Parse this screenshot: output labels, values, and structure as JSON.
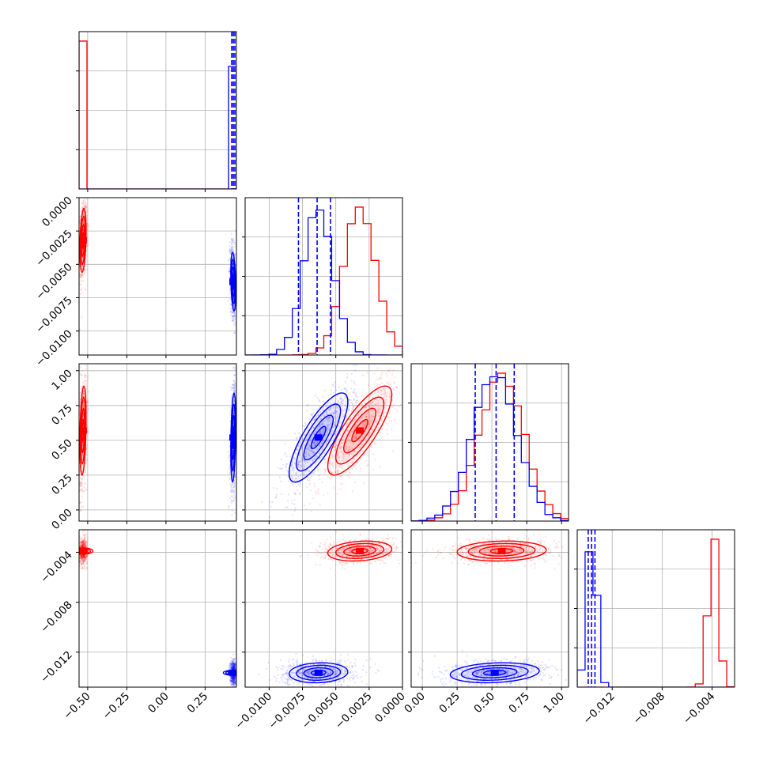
{
  "chart_data": {
    "type": "corner",
    "grid": true,
    "series": [
      {
        "color": "#ff0000",
        "p0": {
          "mean": -0.53,
          "sd": 0.01,
          "quantiles": []
        },
        "p1": {
          "mean": -0.0032,
          "sd": 0.0012,
          "quantiles": []
        },
        "p2": {
          "mean": 0.57,
          "sd": 0.16,
          "quantiles": []
        },
        "p3": {
          "mean": -0.0039,
          "sd": 0.0004,
          "quantiles": []
        },
        "corr": {
          "p1_p2": 0.8,
          "p0_p1": 0.3,
          "p0_p2": 0.3,
          "p1_p3": 0.2,
          "p2_p3": 0.1,
          "p0_p3": 0.0
        }
      },
      {
        "color": "#0000ff",
        "p0": {
          "mean": 0.43,
          "sd": 0.008,
          "quantiles": [
            0.42,
            0.43,
            0.44
          ]
        },
        "p1": {
          "mean": -0.0063,
          "sd": 0.0011,
          "quantiles": [
            -0.0078,
            -0.0064,
            -0.0054
          ]
        },
        "p2": {
          "mean": 0.52,
          "sd": 0.16,
          "quantiles": [
            0.38,
            0.53,
            0.66
          ]
        },
        "p3": {
          "mean": -0.01365,
          "sd": 0.0004,
          "quantiles": [
            -0.01392,
            -0.01365,
            -0.01338
          ]
        },
        "corr": {
          "p1_p2": 0.8,
          "p0_p1": -0.3,
          "p0_p2": 0.3,
          "p1_p3": 0.1,
          "p2_p3": 0.2,
          "p0_p3": 0.0
        }
      }
    ],
    "ranges": [
      [
        -0.555,
        0.45
      ],
      [
        -0.0118,
        0.0
      ],
      [
        -0.08,
        1.05
      ],
      [
        -0.0148,
        -0.0022
      ]
    ],
    "ticks": {
      "p0": [
        -0.5,
        -0.25,
        0.0,
        0.25
      ],
      "p1": [
        -0.01,
        -0.0075,
        -0.005,
        -0.0025,
        0.0
      ],
      "p2": [
        0.0,
        0.25,
        0.5,
        0.75,
        1.0
      ],
      "p3": [
        -0.012,
        -0.008,
        -0.004
      ]
    },
    "tick_labels": {
      "p0": [
        "−0.50",
        "−0.25",
        "0.00",
        "0.25"
      ],
      "p1": [
        "−0.0100",
        "−0.0075",
        "−0.0050",
        "−0.0025",
        "0.0000"
      ],
      "p2": [
        "0.00",
        "0.25",
        "0.50",
        "0.75",
        "1.00"
      ],
      "p3": [
        "−0.012",
        "−0.008",
        "−0.004"
      ]
    }
  }
}
